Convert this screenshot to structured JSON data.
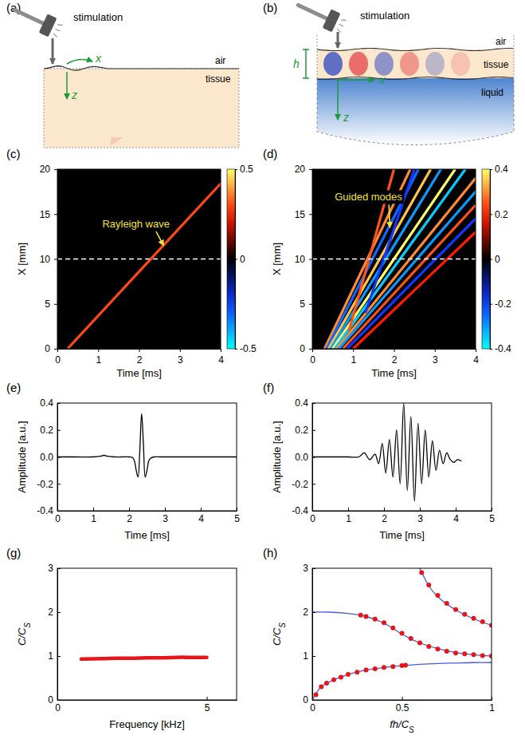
{
  "diagrams": [
    {
      "panel": "(a)",
      "stimulus": "stimulation",
      "upper_medium": "air",
      "layer": "tissue",
      "x_axis": "x",
      "z_axis": "z"
    },
    {
      "panel": "(b)",
      "stimulus": "stimulation",
      "thickness": "h",
      "upper_medium": "air",
      "layer": "tissue",
      "lower_medium": "liquid",
      "x_axis": "x",
      "z_axis": "z"
    }
  ],
  "chart_data": [
    {
      "panel": "(c)",
      "type": "heatmap",
      "xlabel": "Time [ms]",
      "ylabel": "X [mm]",
      "xlim": [
        0,
        4
      ],
      "xticks": [
        0,
        1,
        2,
        3,
        4
      ],
      "ylim": [
        0,
        20
      ],
      "yticks": [
        0,
        5,
        10,
        15,
        20
      ],
      "colorbar": {
        "range": [
          -0.5,
          0.5
        ],
        "ticks": [
          -0.5,
          0,
          0.5
        ]
      },
      "ridges": [
        {
          "x": [
            0.25,
            4
          ],
          "y": [
            0,
            18.4
          ],
          "value": 0.3
        }
      ],
      "hline": 10,
      "annotations": [
        {
          "text": "Rayleigh wave",
          "x": 1.1,
          "y": 13.5,
          "arrow_x": 2.6,
          "arrow_y": 11.5
        }
      ]
    },
    {
      "panel": "(d)",
      "type": "heatmap",
      "xlabel": "Time [ms]",
      "ylabel": "X [mm]",
      "xlim": [
        0,
        4
      ],
      "xticks": [
        0,
        1,
        2,
        3,
        4
      ],
      "ylim": [
        0,
        20
      ],
      "yticks": [
        0,
        5,
        10,
        15,
        20
      ],
      "colorbar": {
        "range": [
          -0.4,
          0.4
        ],
        "ticks": [
          -0.4,
          -0.2,
          0,
          0.2,
          0.4
        ]
      },
      "ridges": [
        {
          "x": [
            0.3,
            2.4
          ],
          "y": [
            0,
            20
          ],
          "value": 0.3
        },
        {
          "x": [
            0.35,
            2.6
          ],
          "y": [
            0,
            20
          ],
          "value": -0.25
        },
        {
          "x": [
            0.4,
            2.9
          ],
          "y": [
            0,
            20
          ],
          "value": 0.35
        },
        {
          "x": [
            0.45,
            3.15
          ],
          "y": [
            0,
            20
          ],
          "value": -0.3
        },
        {
          "x": [
            0.5,
            3.5
          ],
          "y": [
            0,
            20
          ],
          "value": 0.4
        },
        {
          "x": [
            0.55,
            3.75
          ],
          "y": [
            0,
            20
          ],
          "value": -0.35
        },
        {
          "x": [
            0.6,
            4
          ],
          "y": [
            0,
            19
          ],
          "value": 0.3
        },
        {
          "x": [
            0.65,
            4
          ],
          "y": [
            0,
            17.5
          ],
          "value": -0.3
        },
        {
          "x": [
            0.75,
            4
          ],
          "y": [
            0,
            16
          ],
          "value": 0.25
        },
        {
          "x": [
            0.85,
            4
          ],
          "y": [
            0,
            14.5
          ],
          "value": -0.2
        },
        {
          "x": [
            1.0,
            4
          ],
          "y": [
            0,
            13
          ],
          "value": 0.2
        },
        {
          "x": [
            0.9,
            2.0
          ],
          "y": [
            2,
            20
          ],
          "value": 0.25
        },
        {
          "x": [
            1.3,
            2.5
          ],
          "y": [
            4,
            20
          ],
          "value": -0.2
        }
      ],
      "hline": 10,
      "annotations": [
        {
          "text": "Guided modes",
          "x": 0.55,
          "y": 16.5,
          "arrow_x": 1.9,
          "arrow_y": 13.5
        }
      ]
    },
    {
      "panel": "(e)",
      "type": "line",
      "xlabel": "Time [ms]",
      "ylabel": "Amplitude [a.u.]",
      "xlim": [
        0,
        5
      ],
      "xticks": [
        0,
        1,
        2,
        3,
        4,
        5
      ],
      "ylim": [
        -0.4,
        0.4
      ],
      "yticks": [
        -0.4,
        -0.2,
        {
          "value": 0,
          "label": "0.0"
        },
        0.2,
        0.4
      ],
      "x": [
        0,
        0.5,
        1.0,
        1.2,
        1.3,
        1.4,
        1.6,
        1.8,
        2.0,
        2.1,
        2.15,
        2.2,
        2.25,
        2.3,
        2.35,
        2.4,
        2.45,
        2.5,
        2.55,
        2.6,
        2.7,
        2.9,
        3.2,
        3.6,
        4.0,
        4.5,
        5.0
      ],
      "series": [
        {
          "color": "#000000",
          "line_style": "solid",
          "values": [
            0,
            0,
            0,
            0.005,
            0.012,
            0.005,
            0,
            0,
            0,
            -0.005,
            -0.03,
            -0.1,
            -0.15,
            0.05,
            0.32,
            0.1,
            -0.15,
            -0.1,
            -0.03,
            -0.01,
            0,
            0,
            0,
            0,
            0,
            0,
            0
          ]
        }
      ]
    },
    {
      "panel": "(f)",
      "type": "line",
      "xlabel": "Time [ms]",
      "ylabel": "Amplitude [a.u.]",
      "xlim": [
        0,
        5
      ],
      "xticks": [
        0,
        1,
        2,
        3,
        4,
        5
      ],
      "ylim": [
        -0.4,
        0.4
      ],
      "yticks": [
        -0.4,
        -0.2,
        {
          "value": 0,
          "label": "0.0"
        },
        0.2,
        0.4
      ],
      "x": [
        0,
        0.5,
        1.0,
        1.3,
        1.45,
        1.6,
        1.75,
        1.85,
        1.95,
        2.05,
        2.15,
        2.25,
        2.35,
        2.45,
        2.55,
        2.65,
        2.75,
        2.85,
        2.95,
        3.05,
        3.15,
        3.25,
        3.35,
        3.45,
        3.55,
        3.65,
        3.75,
        3.85,
        3.95,
        4.05,
        4.15
      ],
      "series": [
        {
          "color": "#000000",
          "line_style": "solid",
          "values": [
            0,
            0,
            0,
            0,
            0.03,
            -0.02,
            0.02,
            -0.05,
            0.1,
            -0.12,
            0.13,
            -0.15,
            0.2,
            -0.2,
            0.4,
            -0.25,
            0.3,
            -0.33,
            0.25,
            -0.2,
            0.2,
            -0.15,
            0.12,
            -0.1,
            0.05,
            -0.05,
            0.03,
            -0.02,
            -0.04,
            -0.02,
            -0.03
          ]
        }
      ]
    },
    {
      "panel": "(g)",
      "type": "line",
      "xlabel": "Frequency [kHz]",
      "ylabel": {
        "text": "C/C",
        "subscript": "S"
      },
      "xlim": [
        0,
        6
      ],
      "xticks": [
        0,
        5
      ],
      "ylim": [
        0,
        3
      ],
      "yticks": [
        0,
        1,
        2,
        3
      ],
      "x": [
        0.8,
        1.5,
        2,
        2.5,
        3,
        3.5,
        4,
        4.5,
        5
      ],
      "series": [
        {
          "color": "#e8141b",
          "line_style": "bold",
          "values": [
            0.93,
            0.94,
            0.95,
            0.95,
            0.96,
            0.96,
            0.97,
            0.97,
            0.97
          ]
        }
      ]
    },
    {
      "panel": "(h)",
      "type": "line",
      "xlabel": {
        "text": "fh/C",
        "subscript": "S"
      },
      "ylabel": {
        "text": "C/C",
        "subscript": "S"
      },
      "xlim": [
        0,
        1
      ],
      "xticks": [
        0,
        0.5,
        1
      ],
      "ylim": [
        0,
        3
      ],
      "yticks": [
        0,
        1,
        2,
        3
      ],
      "series": [
        {
          "type": "line",
          "color": "#4a5bd6",
          "line_style": "solid",
          "x": [
            0,
            0.05,
            0.1,
            0.2,
            0.3,
            0.4,
            0.5,
            0.6,
            0.7,
            0.8,
            0.9,
            1
          ],
          "values": [
            0,
            0.3,
            0.42,
            0.58,
            0.68,
            0.74,
            0.78,
            0.81,
            0.83,
            0.84,
            0.85,
            0.85
          ]
        },
        {
          "type": "line",
          "color": "#4a5bd6",
          "line_style": "solid",
          "x": [
            0,
            0.1,
            0.2,
            0.3,
            0.4,
            0.5,
            0.6,
            0.7,
            0.8,
            0.9,
            1
          ],
          "values": [
            2,
            2,
            1.97,
            1.9,
            1.75,
            1.5,
            1.3,
            1.17,
            1.08,
            1.03,
            1
          ]
        },
        {
          "type": "line",
          "color": "#4a5bd6",
          "line_style": "solid",
          "x": [
            0.6,
            0.65,
            0.7,
            0.8,
            0.9,
            1
          ],
          "values": [
            3,
            2.6,
            2.35,
            2.05,
            1.85,
            1.7
          ]
        },
        {
          "type": "scatter",
          "color": "#e8141b",
          "marker": "circle",
          "x": [
            0.02,
            0.05,
            0.08,
            0.12,
            0.16,
            0.2,
            0.25,
            0.3,
            0.35,
            0.4,
            0.45,
            0.5,
            0.52
          ],
          "values": [
            0.12,
            0.3,
            0.38,
            0.46,
            0.52,
            0.58,
            0.63,
            0.68,
            0.71,
            0.74,
            0.76,
            0.78,
            0.79
          ]
        },
        {
          "type": "scatter",
          "color": "#e8141b",
          "marker": "circle",
          "x": [
            0.27,
            0.3,
            0.35,
            0.4,
            0.45,
            0.5,
            0.55,
            0.6,
            0.65,
            0.7,
            0.75,
            0.8,
            0.85,
            0.9,
            0.95,
            1
          ],
          "values": [
            1.93,
            1.9,
            1.84,
            1.76,
            1.64,
            1.52,
            1.4,
            1.3,
            1.22,
            1.16,
            1.11,
            1.07,
            1.05,
            1.03,
            1.01,
            1
          ]
        },
        {
          "type": "scatter",
          "color": "#e8141b",
          "marker": "circle",
          "x": [
            0.61,
            0.65,
            0.7,
            0.75,
            0.8,
            0.85,
            0.9,
            0.95,
            1
          ],
          "values": [
            2.9,
            2.62,
            2.38,
            2.2,
            2.06,
            1.95,
            1.86,
            1.78,
            1.7
          ]
        }
      ]
    }
  ]
}
